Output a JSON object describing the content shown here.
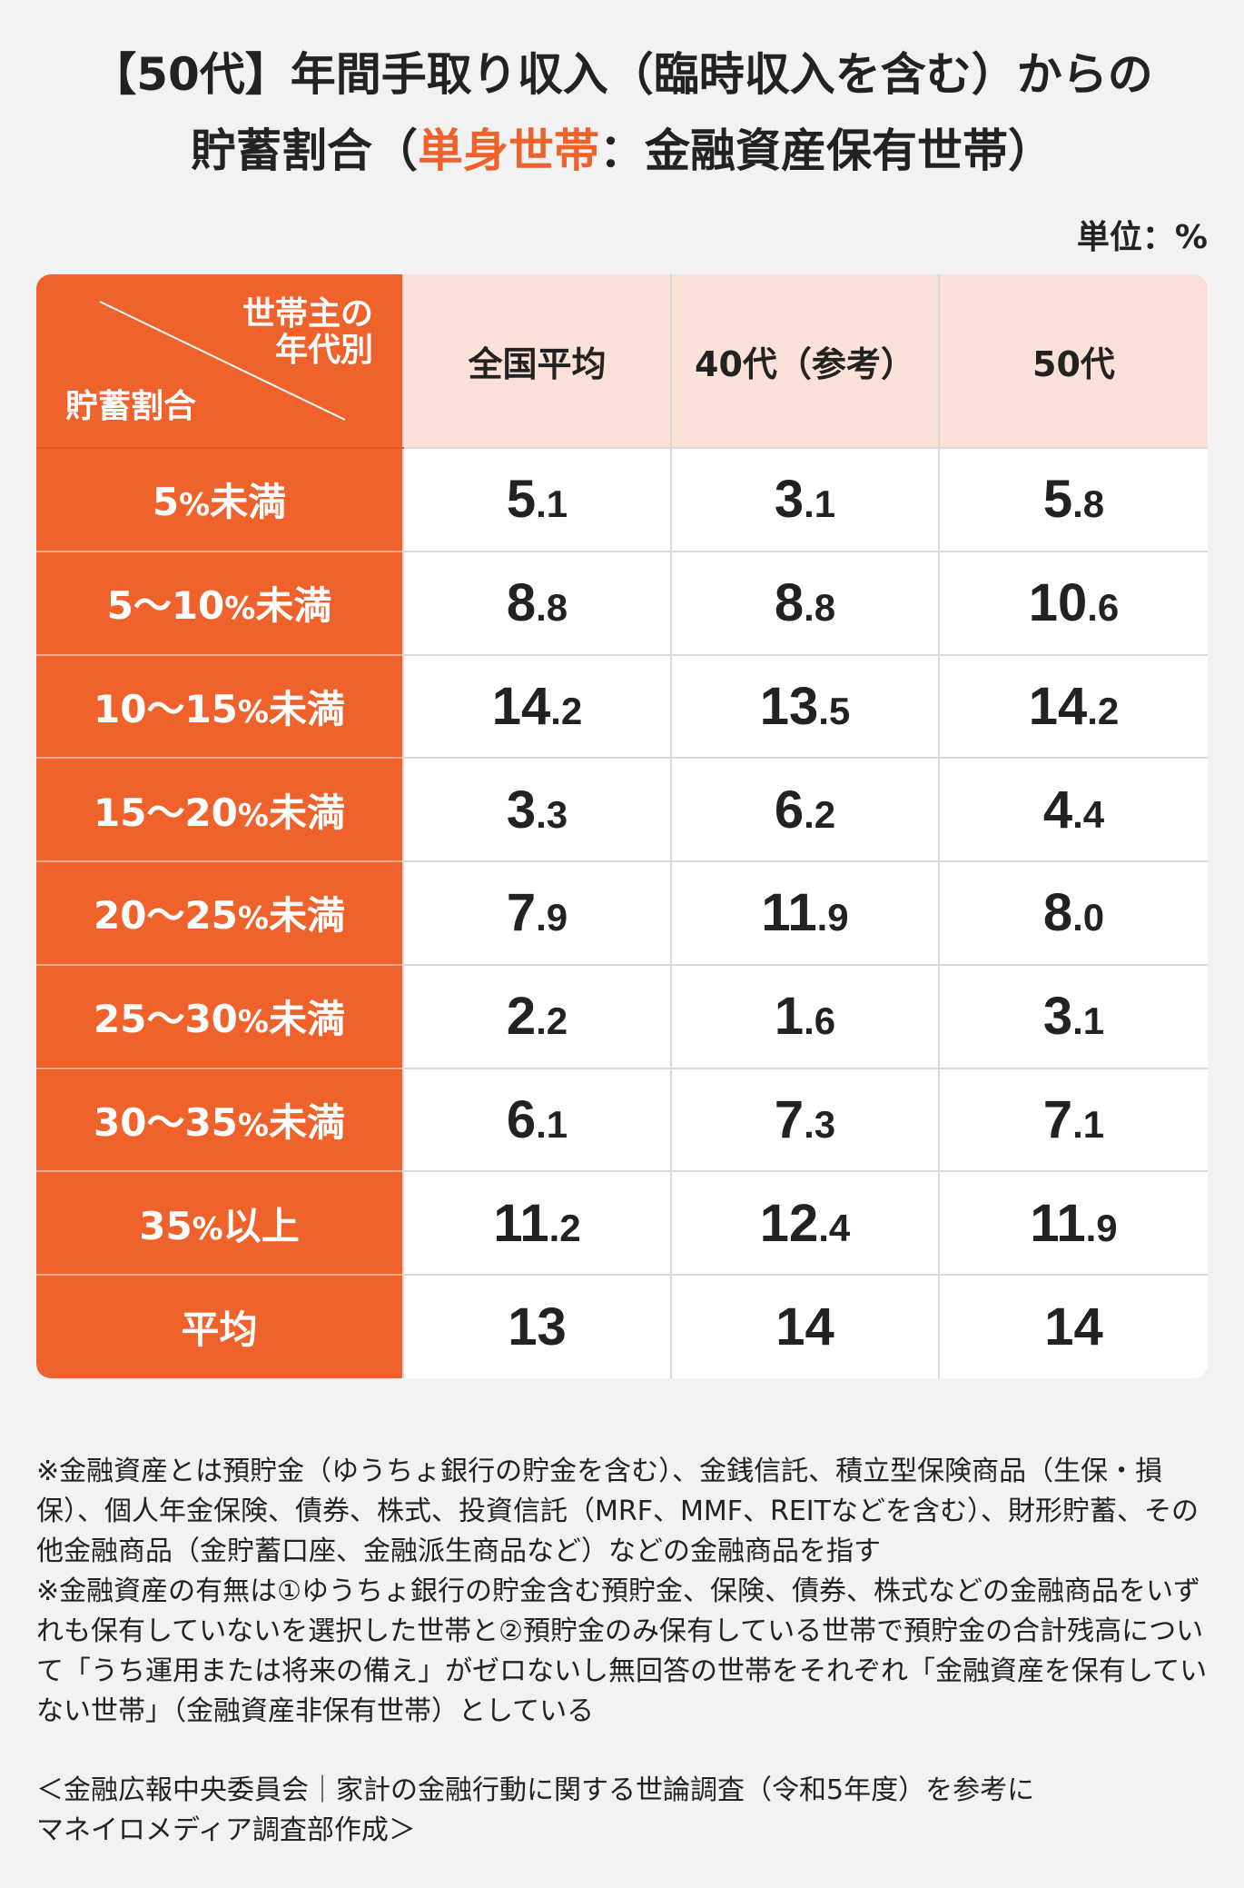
{
  "title": {
    "line1": "【50代】年間手取り収入（臨時収入を含む）からの",
    "line2_prefix": "貯蓄割合（",
    "line2_highlight": "単身世帯",
    "line2_suffix": "：金融資産保有世帯）"
  },
  "unit": "単位：%",
  "colors": {
    "accent": "#f0622b",
    "header_bg": "#fbe1d7"
  },
  "table": {
    "corner_top_line1": "世帯主の",
    "corner_top_line2": "年代別",
    "corner_bottom": "貯蓄割合",
    "columns": [
      "全国平均",
      "40代（参考）",
      "50代"
    ]
  },
  "chart_data": {
    "type": "table",
    "title": "【50代】年間手取り収入（臨時収入を含む）からの貯蓄割合（単身世帯：金融資産保有世帯）",
    "unit": "単位：%",
    "columns": [
      "全国平均",
      "40代（参考）",
      "50代"
    ],
    "rows": [
      {
        "label_num": "5",
        "label_pct": "%",
        "label_suffix": "未満",
        "values": [
          "5.1",
          "3.1",
          "5.8"
        ]
      },
      {
        "label_num": "5～10",
        "label_pct": "%",
        "label_suffix": "未満",
        "values": [
          "8.8",
          "8.8",
          "10.6"
        ]
      },
      {
        "label_num": "10～15",
        "label_pct": "%",
        "label_suffix": "未満",
        "values": [
          "14.2",
          "13.5",
          "14.2"
        ]
      },
      {
        "label_num": "15～20",
        "label_pct": "%",
        "label_suffix": "未満",
        "values": [
          "3.3",
          "6.2",
          "4.4"
        ]
      },
      {
        "label_num": "20～25",
        "label_pct": "%",
        "label_suffix": "未満",
        "values": [
          "7.9",
          "11.9",
          "8.0"
        ]
      },
      {
        "label_num": "25～30",
        "label_pct": "%",
        "label_suffix": "未満",
        "values": [
          "2.2",
          "1.6",
          "3.1"
        ]
      },
      {
        "label_num": "30～35",
        "label_pct": "%",
        "label_suffix": "未満",
        "values": [
          "6.1",
          "7.3",
          "7.1"
        ]
      },
      {
        "label_num": "35",
        "label_pct": "%",
        "label_suffix": "以上",
        "values": [
          "11.2",
          "12.4",
          "11.9"
        ]
      },
      {
        "label_num": "平均",
        "label_pct": "",
        "label_suffix": "",
        "values": [
          "13",
          "14",
          "14"
        ]
      }
    ]
  },
  "notes": [
    "※金融資産とは預貯金（ゆうちょ銀行の貯金を含む）、金銭信託、積立型保険商品（生保・損保）、個人年金保険、債券、株式、投資信託（MRF、MMF、REITなどを含む）、財形貯蓄、その他金融商品（金貯蓄口座、金融派生商品など）などの金融商品を指す",
    "※金融資産の有無は①ゆうちょ銀行の貯金含む預貯金、保険、債券、株式などの金融商品をいずれも保有していないを選択した世帯と②預貯金のみ保有している世帯で預貯金の合計残高について「うち運用または将来の備え」がゼロないし無回答の世帯をそれぞれ「金融資産を保有していない世帯」（金融資産非保有世帯）としている"
  ],
  "source": {
    "line1": "＜金融広報中央委員会｜家計の金融行動に関する世論調査（令和5年度）を参考に",
    "line2": "マネイロメディア調査部作成＞"
  }
}
